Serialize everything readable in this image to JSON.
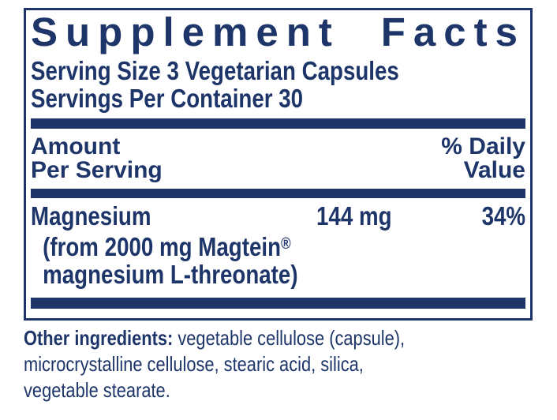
{
  "colors": {
    "navy": "#1d3569",
    "background": "#ffffff"
  },
  "supplement_facts": {
    "title": "Supplement Facts",
    "serving_size": "Serving Size 3 Vegetarian Capsules",
    "servings_per_container": "Servings Per Container 30",
    "column_headers": {
      "amount_line1": "Amount",
      "amount_line2": "Per Serving",
      "daily_value_line1": "% Daily",
      "daily_value_line2": "Value"
    },
    "nutrients": [
      {
        "name": "Magnesium",
        "amount": "144 mg",
        "daily_value": "34%",
        "source_line1": "(from 2000 mg Magtein",
        "source_line1_sup": "®",
        "source_line2": "magnesium L-threonate)"
      }
    ],
    "other_ingredients": {
      "label": "Other ingredients:",
      "line1_rest": " vegetable cellulose (capsule),",
      "line2": "microcrystalline cellulose, stearic acid, silica,",
      "line3": "vegetable stearate."
    }
  }
}
